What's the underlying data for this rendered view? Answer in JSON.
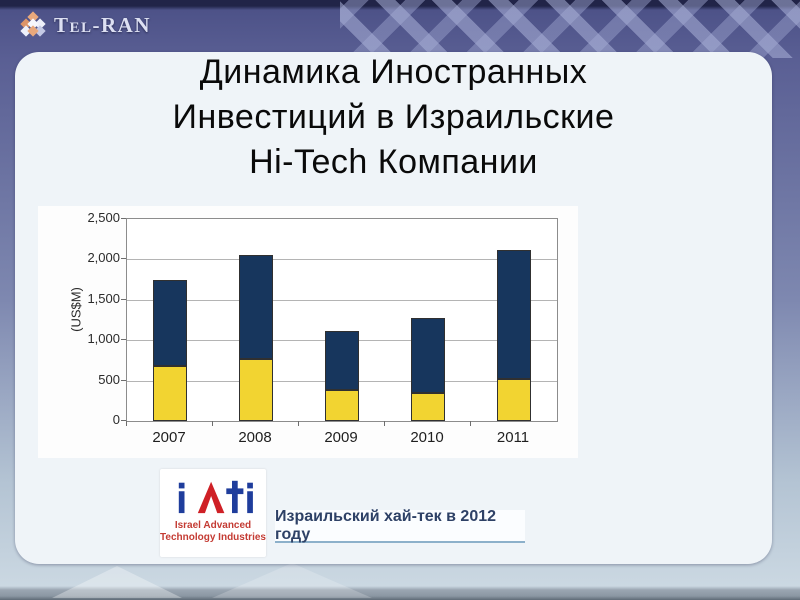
{
  "brand": {
    "logo_text": "Tel-RAN"
  },
  "title": {
    "line1": "Динамика Иностранных",
    "line2": "Инвестиций в Израильские",
    "line3": "Hi-Tech Компании"
  },
  "chart_data": {
    "type": "bar",
    "stacked": true,
    "categories": [
      "2007",
      "2008",
      "2009",
      "2010",
      "2011"
    ],
    "series": [
      {
        "name": "bottom-segment-yellow",
        "color": "#f2d431",
        "values": [
          680,
          770,
          390,
          345,
          520
        ]
      },
      {
        "name": "top-segment-navy",
        "color": "#17365d",
        "values": [
          1070,
          1290,
          730,
          925,
          1600
        ]
      }
    ],
    "totals": [
      1750,
      2060,
      1120,
      1270,
      2120
    ],
    "title": "",
    "xlabel": "",
    "ylabel": "(US$M)",
    "ylim": [
      0,
      2500
    ],
    "ytick_step": 500,
    "ytick_labels": [
      "0",
      "500",
      "1,000",
      "1,500",
      "2,000",
      "2,500"
    ],
    "grid": true,
    "legend": "none"
  },
  "footer": {
    "iati": {
      "letters": "IATI",
      "line1": "Israel Advanced",
      "line2": "Technology Industries"
    },
    "caption": "Израильский хай-тек в 2012 году"
  },
  "colors": {
    "bar_navy": "#17365d",
    "bar_yellow": "#f2d431",
    "slide_top": "#5a5f94",
    "slide_bottom": "#cbd8e2",
    "content_bg": "#eff4f8",
    "iati_blue": "#1f3d9c",
    "iati_red": "#cf2026"
  }
}
